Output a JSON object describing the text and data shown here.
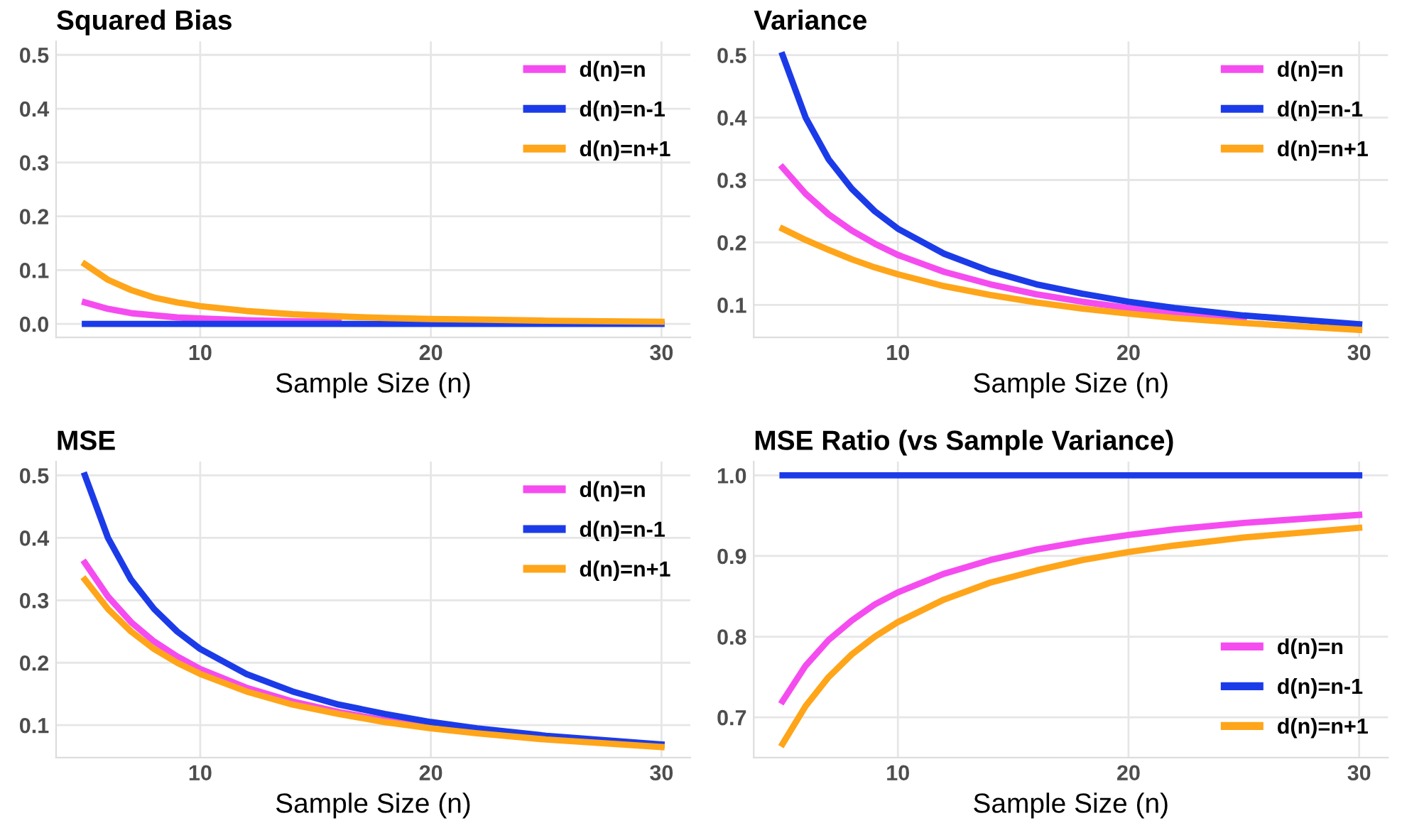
{
  "chart_data": [
    {
      "type": "line",
      "title": "Squared Bias",
      "xlabel": "Sample Size (n)",
      "x": [
        5,
        6,
        7,
        8,
        9,
        10,
        12,
        14,
        16,
        18,
        20,
        22,
        25,
        30
      ],
      "xlim": [
        3.75,
        31.25
      ],
      "xticks": [
        10,
        20,
        30
      ],
      "ylim": [
        -0.025,
        0.525
      ],
      "yticks": [
        {
          "value": 0,
          "label": "0.0"
        },
        0.1,
        0.2,
        0.3,
        0.4,
        0.5
      ],
      "grid": true,
      "legend": "top right",
      "series": [
        {
          "name": "d(n)=n",
          "color": "#f54cf0",
          "values": [
            0.04,
            0.028,
            0.02,
            0.016,
            0.012,
            0.01,
            0.007,
            0.005,
            0.004,
            null,
            null,
            null,
            null,
            null
          ]
        },
        {
          "name": "d(n)=n-1",
          "color": "#1c3be8",
          "values": [
            0,
            0,
            0,
            0,
            0,
            0,
            0,
            0,
            0,
            0,
            0,
            0,
            0,
            0
          ]
        },
        {
          "name": "d(n)=n+1",
          "color": "#ffa51a",
          "values": [
            0.111,
            0.082,
            0.063,
            0.049,
            0.04,
            0.033,
            0.024,
            0.018,
            0.014,
            0.011,
            0.009,
            0.008,
            0.006,
            0.004
          ]
        }
      ]
    },
    {
      "type": "line",
      "title": "Variance",
      "xlabel": "Sample Size (n)",
      "x": [
        5,
        6,
        7,
        8,
        9,
        10,
        12,
        14,
        16,
        18,
        20,
        22,
        25,
        30
      ],
      "xlim": [
        3.75,
        31.25
      ],
      "xticks": [
        10,
        20,
        30
      ],
      "ylim": [
        0.048,
        0.522
      ],
      "yticks": [
        0.1,
        0.2,
        0.3,
        0.4,
        0.5
      ],
      "grid": true,
      "legend": "top right",
      "series": [
        {
          "name": "d(n)=n",
          "color": "#f54cf0",
          "values": [
            0.32,
            0.278,
            0.245,
            0.219,
            0.198,
            0.18,
            0.153,
            0.133,
            0.117,
            0.105,
            0.095,
            0.087,
            0.077,
            null
          ]
        },
        {
          "name": "d(n)=n-1",
          "color": "#1c3be8",
          "values": [
            0.5,
            0.4,
            0.333,
            0.286,
            0.25,
            0.222,
            0.182,
            0.154,
            0.133,
            0.118,
            0.105,
            0.095,
            0.083,
            0.069
          ]
        },
        {
          "name": "d(n)=n+1",
          "color": "#ffa51a",
          "values": [
            0.222,
            0.204,
            0.188,
            0.173,
            0.16,
            0.149,
            0.13,
            0.116,
            0.104,
            0.094,
            0.086,
            0.079,
            0.071,
            0.06
          ]
        }
      ]
    },
    {
      "type": "line",
      "title": "MSE",
      "xlabel": "Sample Size (n)",
      "x": [
        5,
        6,
        7,
        8,
        9,
        10,
        12,
        14,
        16,
        18,
        20,
        22,
        25,
        30
      ],
      "xlim": [
        3.75,
        31.25
      ],
      "xticks": [
        10,
        20,
        30
      ],
      "ylim": [
        0.048,
        0.522
      ],
      "yticks": [
        0.1,
        0.2,
        0.3,
        0.4,
        0.5
      ],
      "grid": true,
      "legend": "top right",
      "series": [
        {
          "name": "d(n)=n",
          "color": "#f54cf0",
          "values": [
            0.36,
            0.306,
            0.265,
            0.234,
            0.21,
            0.19,
            0.16,
            0.138,
            0.121,
            0.108,
            0.098,
            null,
            null,
            null
          ]
        },
        {
          "name": "d(n)=n-1",
          "color": "#1c3be8",
          "values": [
            0.5,
            0.4,
            0.333,
            0.286,
            0.25,
            0.222,
            0.182,
            0.154,
            0.133,
            0.118,
            0.105,
            0.095,
            0.083,
            0.069
          ]
        },
        {
          "name": "d(n)=n+1",
          "color": "#ffa51a",
          "values": [
            0.333,
            0.286,
            0.25,
            0.222,
            0.2,
            0.182,
            0.154,
            0.133,
            0.118,
            0.105,
            0.095,
            0.087,
            0.077,
            0.065
          ]
        }
      ]
    },
    {
      "type": "line",
      "title": "MSE Ratio (vs Sample Variance)",
      "xlabel": "Sample Size (n)",
      "x": [
        5,
        6,
        7,
        8,
        9,
        10,
        12,
        14,
        16,
        18,
        20,
        22,
        25,
        30
      ],
      "xlim": [
        3.75,
        31.25
      ],
      "xticks": [
        10,
        20,
        30
      ],
      "ylim": [
        0.65,
        1.017
      ],
      "yticks": [
        0.7,
        0.8,
        0.9,
        {
          "value": 1,
          "label": "1.0"
        }
      ],
      "grid": true,
      "legend": "bottom right",
      "series": [
        {
          "name": "d(n)=n",
          "color": "#f54cf0",
          "values": [
            0.72,
            0.764,
            0.796,
            0.82,
            0.84,
            0.855,
            0.878,
            0.895,
            0.908,
            0.918,
            0.926,
            0.933,
            0.941,
            0.951
          ]
        },
        {
          "name": "d(n)=n-1",
          "color": "#1c3be8",
          "values": [
            1,
            1,
            1,
            1,
            1,
            1,
            1,
            1,
            1,
            1,
            1,
            1,
            1,
            1
          ]
        },
        {
          "name": "d(n)=n+1",
          "color": "#ffa51a",
          "values": [
            0.667,
            0.714,
            0.75,
            0.778,
            0.8,
            0.818,
            0.846,
            0.867,
            0.882,
            0.895,
            0.905,
            0.913,
            0.923,
            0.935
          ]
        }
      ]
    }
  ]
}
